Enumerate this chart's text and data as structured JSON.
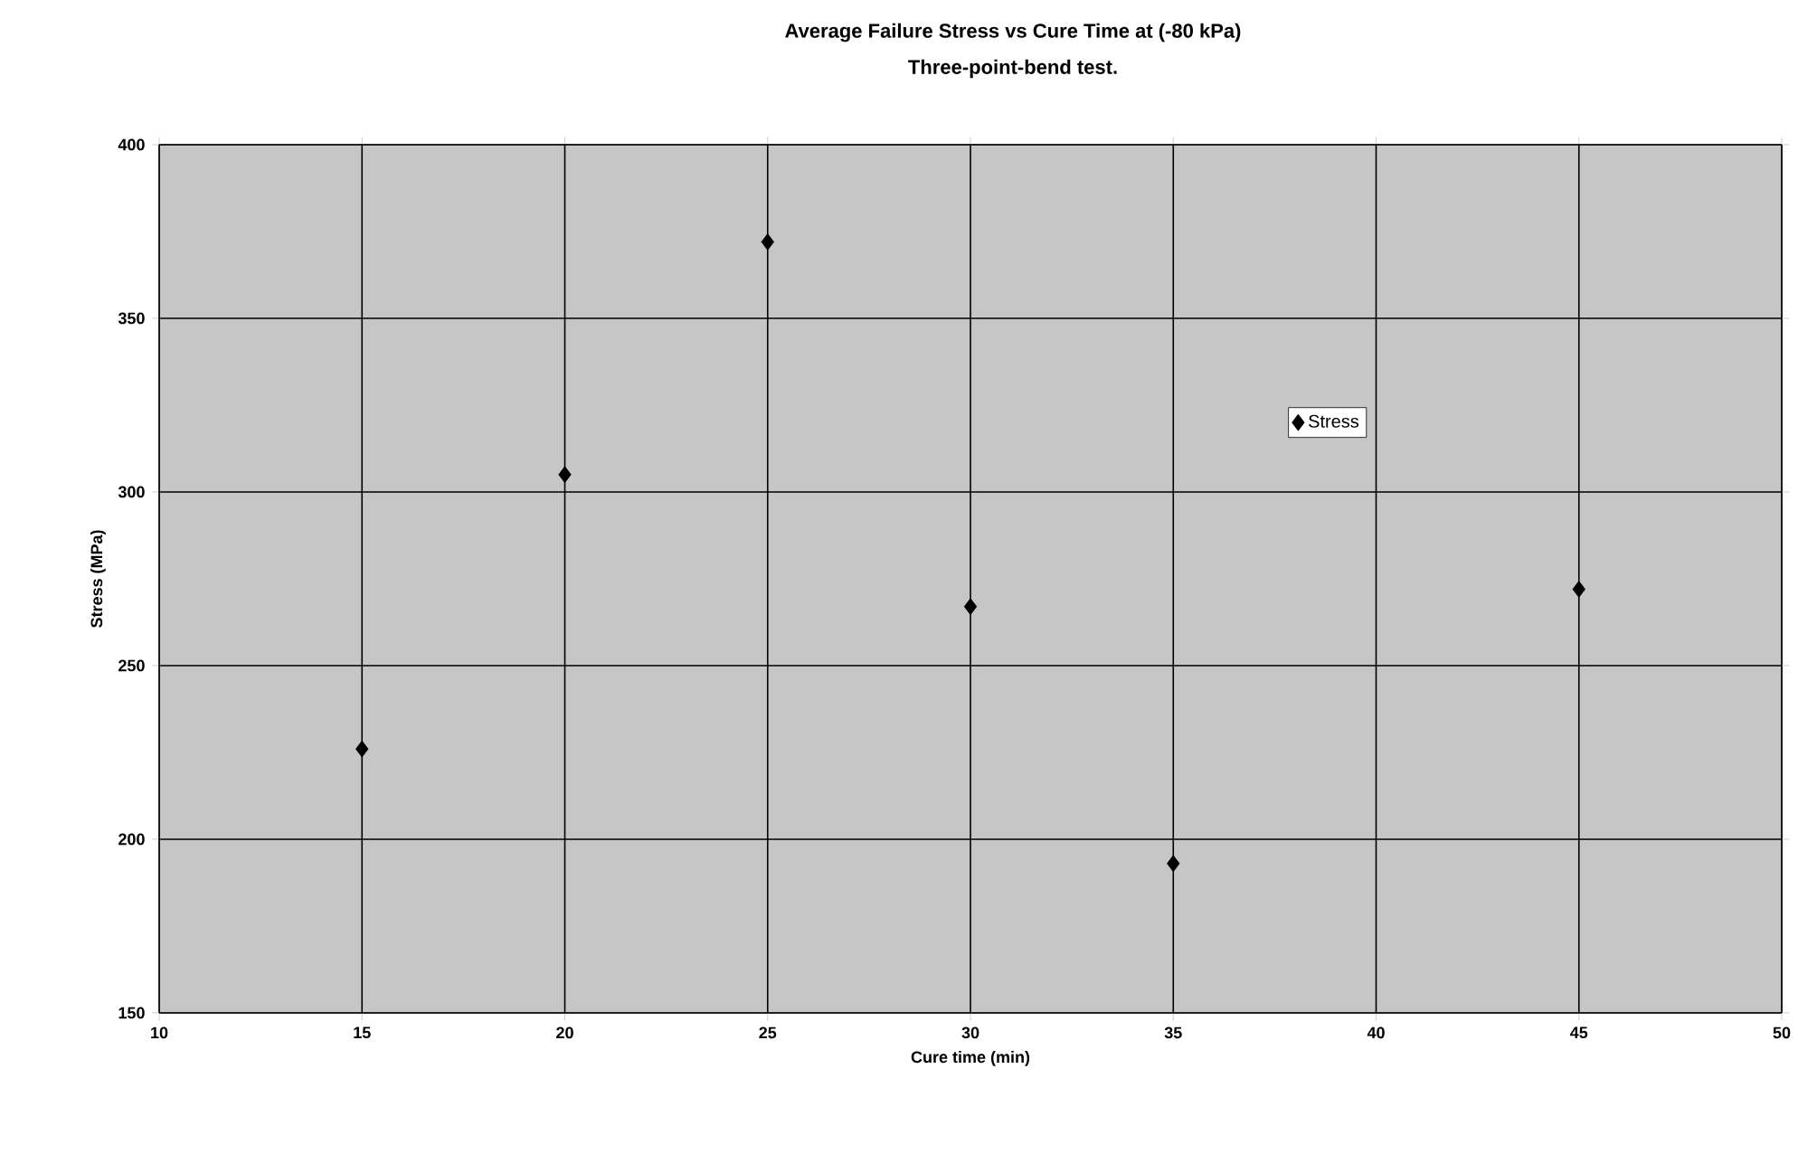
{
  "chart_data": {
    "type": "scatter",
    "title": "Average Failure Stress vs Cure Time at (-80 kPa)",
    "subtitle": "Three-point-bend test.",
    "xlabel": "Cure time (min)",
    "ylabel": "Stress (MPa)",
    "x": [
      15,
      20,
      25,
      30,
      35,
      45
    ],
    "series": [
      {
        "name": "Stress",
        "color": "#000000",
        "values": [
          226,
          305,
          372,
          267,
          193,
          272
        ]
      }
    ],
    "xlim": [
      10,
      50
    ],
    "ylim": [
      150,
      400
    ],
    "xticks": [
      10,
      15,
      20,
      25,
      30,
      35,
      40,
      45,
      50
    ],
    "yticks": [
      150,
      200,
      250,
      300,
      350,
      400
    ],
    "grid": true,
    "legend": "right",
    "marker": "diamond"
  }
}
